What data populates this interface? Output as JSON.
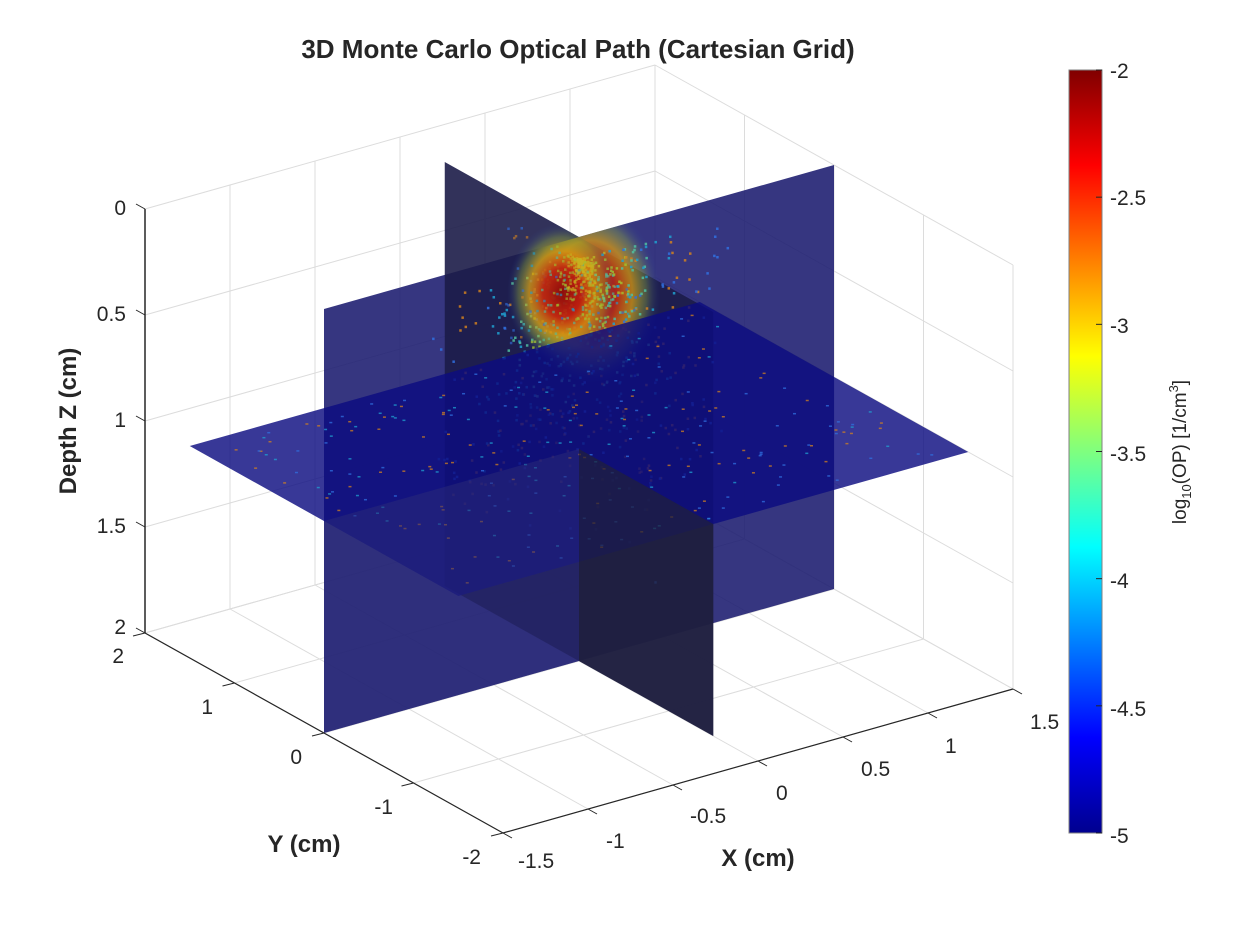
{
  "chart_data": {
    "type": "heatmap",
    "subtype": "3d-orthogonal-slices",
    "title": "3D Monte Carlo Optical Path (Cartesian Grid)",
    "xlabel": "X (cm)",
    "ylabel": "Y (cm)",
    "zlabel": "Depth Z (cm)",
    "xlim": [
      -1.5,
      1.5
    ],
    "ylim": [
      -2,
      2
    ],
    "zlim": [
      0,
      2
    ],
    "z_direction": "reverse",
    "x_ticks": [
      "-1.5",
      "-1",
      "-0.5",
      "0",
      "0.5",
      "1",
      "1.5"
    ],
    "y_ticks": [
      "-2",
      "-1",
      "0",
      "1",
      "2"
    ],
    "z_ticks": [
      "0",
      "0.5",
      "1",
      "1.5",
      "2"
    ],
    "grid": true,
    "slices": [
      {
        "name": "x-slice",
        "axis": "X",
        "value": 0,
        "span_y": [
          -1.5,
          1.5
        ],
        "span_z": [
          0,
          2
        ]
      },
      {
        "name": "y-slice",
        "axis": "Y",
        "value": 0,
        "span_x": [
          -1.5,
          1.5
        ],
        "span_z": [
          0,
          2
        ]
      },
      {
        "name": "z-slice",
        "axis": "Z",
        "value": 1,
        "span_x": [
          -1.5,
          1.5
        ],
        "span_y": [
          -1.5,
          1.5
        ]
      }
    ],
    "hotspot": {
      "x": 0,
      "y": 0,
      "z": 0.2,
      "peak_log10": -2.1
    },
    "colorbar": {
      "label_main": "log",
      "label_sub": "10",
      "label_mid": "(OP) [1/cm",
      "label_sup": "3",
      "label_end": "]",
      "colormap": "jet",
      "clim": [
        -5,
        -2
      ],
      "ticks": [
        "-2",
        "-2.5",
        "-3",
        "-3.5",
        "-4",
        "-4.5",
        "-5"
      ],
      "tick_values": [
        -2,
        -2.5,
        -3,
        -3.5,
        -4,
        -4.5,
        -5
      ],
      "location": "right"
    },
    "colors": {
      "background_slice": "#0a0a6e",
      "jet_stops": [
        "#00008f",
        "#0000ff",
        "#00ffff",
        "#ffff00",
        "#ff0000",
        "#800000"
      ]
    }
  }
}
